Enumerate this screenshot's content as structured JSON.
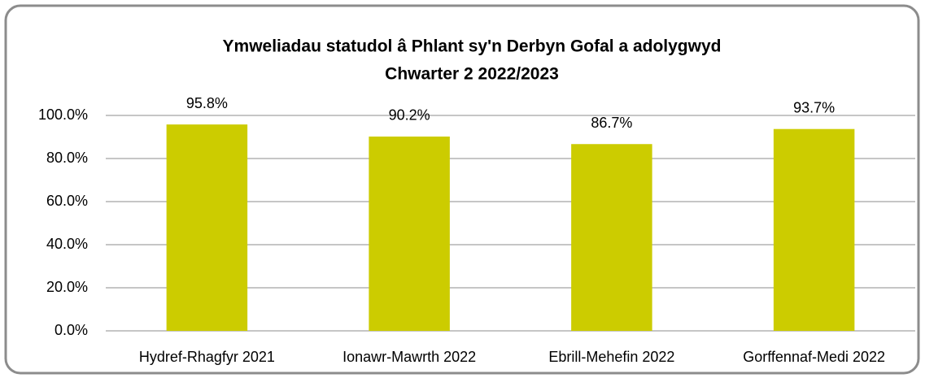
{
  "chart_data": {
    "type": "bar",
    "title": [
      "Ymweliadau statudol â Phlant sy'n Derbyn Gofal a adolygwyd",
      "Chwarter 2  2022/2023"
    ],
    "categories": [
      "Hydref-Rhagfyr 2021",
      "Ionawr-Mawrth 2022",
      "Ebrill-Mehefin 2022",
      "Gorffennaf-Medi 2022"
    ],
    "values": [
      95.8,
      90.2,
      86.7,
      93.7
    ],
    "value_labels": [
      "95.8%",
      "90.2%",
      "86.7%",
      "93.7%"
    ],
    "color": "#cccc00",
    "ylim": [
      0,
      100
    ],
    "yticks": [
      {
        "value": 0,
        "label": "0.0%"
      },
      {
        "value": 20,
        "label": "20.0%"
      },
      {
        "value": 40,
        "label": "40.0%"
      },
      {
        "value": 60,
        "label": "60.0%"
      },
      {
        "value": 80,
        "label": "80.0%"
      },
      {
        "value": 100,
        "label": "100.0%"
      }
    ],
    "grid": true
  }
}
